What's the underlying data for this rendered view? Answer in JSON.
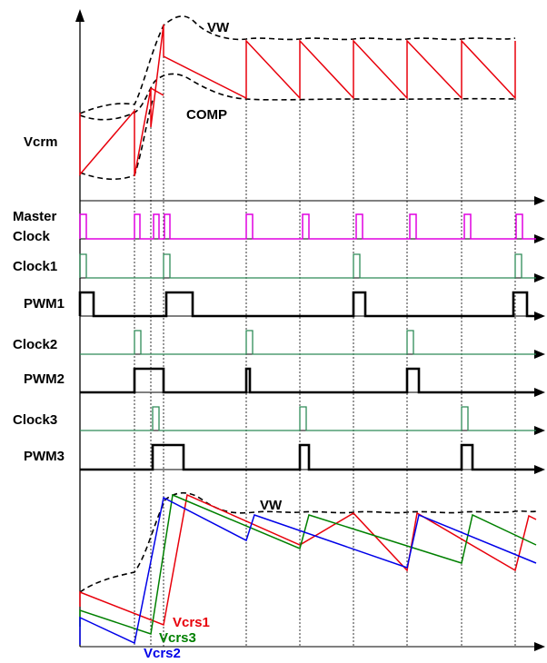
{
  "labels": {
    "vcrm": "Vcrm",
    "master_clock_line1": "Master",
    "master_clock_line2": "Clock",
    "clock1": "Clock1",
    "pwm1": "PWM1",
    "clock2": "Clock2",
    "pwm2": "PWM2",
    "clock3": "Clock3",
    "pwm3": "PWM3",
    "vw_top": "VW",
    "comp": "COMP",
    "vw_bottom": "VW",
    "vcrs1": "Vcrs1",
    "vcrs3": "Vcrs3",
    "vcrs2": "Vcrs2"
  },
  "colors": {
    "vcrm": "#e8000b",
    "master_clock": "#e000e0",
    "clock": "#2e8b57",
    "pwm": "#000000",
    "vcrs1": "#e8000b",
    "vcrs2": "#0000e8",
    "vcrs3": "#008000",
    "envelope": "#000000"
  }
}
